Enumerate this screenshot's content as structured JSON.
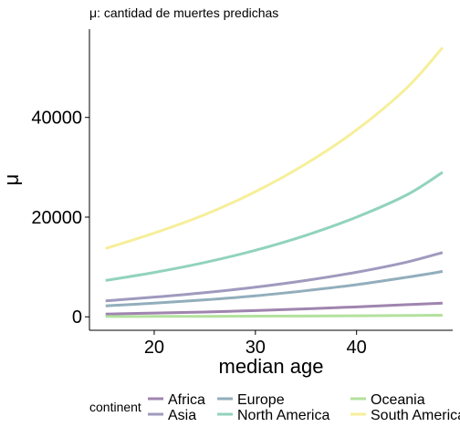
{
  "chart_data": {
    "type": "line",
    "title": "μ: cantidad de muertes predichas",
    "xlabel": "median age",
    "ylabel": "μ",
    "xlim": [
      13.6,
      49.5
    ],
    "ylim": [
      -2700,
      57700
    ],
    "x_ticks": [
      20,
      30,
      40
    ],
    "y_ticks": [
      0,
      20000,
      40000
    ],
    "grid": false,
    "legend": {
      "title": "continent",
      "placement": "bottom"
    },
    "series": [
      {
        "name": "Africa",
        "color": "#8e6fa1",
        "x": [
          15.2,
          20,
          25,
          30,
          35,
          40,
          45,
          48.5
        ],
        "y": [
          560,
          750,
          970,
          1250,
          1600,
          2000,
          2450,
          2750
        ]
      },
      {
        "name": "Asia",
        "color": "#8e88b3",
        "x": [
          15.2,
          20,
          25,
          30,
          35,
          40,
          45,
          48.5
        ],
        "y": [
          3200,
          3950,
          4850,
          5950,
          7300,
          8950,
          11000,
          12900
        ]
      },
      {
        "name": "Europe",
        "color": "#7fa0b0",
        "x": [
          15.2,
          20,
          25,
          30,
          35,
          40,
          45,
          48.5
        ],
        "y": [
          2200,
          2750,
          3400,
          4200,
          5250,
          6450,
          7950,
          9100
        ]
      },
      {
        "name": "North America",
        "color": "#7ecbb0",
        "x": [
          15.2,
          20,
          25,
          30,
          35,
          40,
          45,
          48.5
        ],
        "y": [
          7300,
          8900,
          10900,
          13350,
          16350,
          20000,
          24500,
          29000
        ]
      },
      {
        "name": "Oceania",
        "color": "#a6dc8c",
        "x": [
          15.2,
          20,
          25,
          30,
          35,
          40,
          45,
          48.5
        ],
        "y": [
          60,
          80,
          100,
          130,
          170,
          210,
          270,
          320
        ]
      },
      {
        "name": "South America",
        "color": "#f4ec88",
        "x": [
          15.2,
          20,
          25,
          30,
          35,
          40,
          45,
          48.5
        ],
        "y": [
          13700,
          16800,
          20500,
          25100,
          30700,
          37500,
          46000,
          54000
        ]
      }
    ]
  }
}
